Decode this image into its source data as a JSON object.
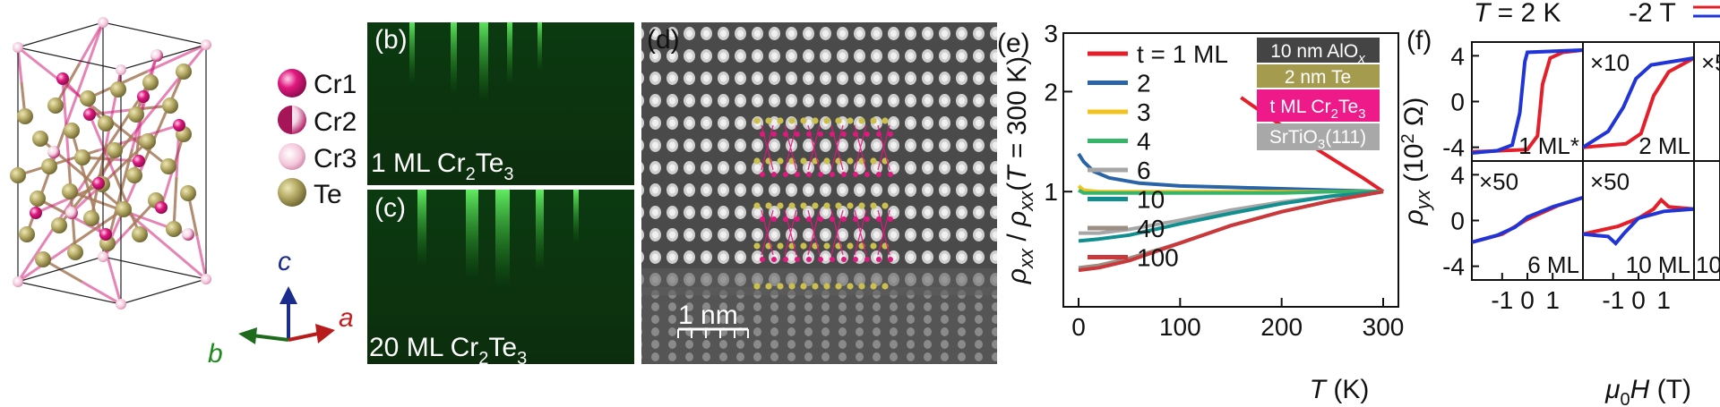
{
  "panels": {
    "b": {
      "label": "(b)",
      "caption": "1 ML Cr",
      "sub2": "2",
      "mid": "Te",
      "sub3": "3"
    },
    "c": {
      "label": "(c)",
      "caption": "20 ML Cr",
      "sub2": "2",
      "mid": "Te",
      "sub3": "3"
    },
    "d": {
      "label": "(d)",
      "scalebar": "1 nm"
    },
    "e": {
      "label": "(e)"
    },
    "f": {
      "label": "(f)",
      "title": "T = 2 K",
      "field_legend": "-2 T"
    }
  },
  "structure_legend": [
    {
      "label": "Cr1",
      "color": "#e0187f",
      "icon": "cr1-atom-icon"
    },
    {
      "label": "Cr2",
      "color": "#b01a64",
      "icon": "cr2-atom-icon"
    },
    {
      "label": "Cr3",
      "color": "#e9a5c6",
      "icon": "cr3-atom-icon"
    },
    {
      "label": "Te",
      "color": "#b3a863",
      "icon": "te-atom-icon"
    }
  ],
  "axes_labels": {
    "a": "a",
    "b": "b",
    "c": "c"
  },
  "stack_layers": [
    {
      "text": "10 nm AlO",
      "sub": "x",
      "color": "#444444"
    },
    {
      "text": "2 nm Te",
      "sub": "",
      "color": "#a59b4f"
    },
    {
      "text": "t ML Cr",
      "sub": "2",
      "mid": "Te",
      "sub2": "3",
      "color": "#ee1a8a"
    },
    {
      "text": "SrTiO",
      "sub": "3",
      "tail": "(111)",
      "color": "#a8a8a8"
    }
  ],
  "chart_data": [
    {
      "type": "line",
      "panel": "e",
      "xlabel": "T (K)",
      "ylabel": "ρxx / ρxx(T = 300 K)",
      "ylog": true,
      "xlim": [
        -15,
        315
      ],
      "ylim": [
        0.45,
        3.0
      ],
      "xticks": [
        "0",
        "100",
        "200",
        "300"
      ],
      "yticks": [
        "1",
        "2",
        "3"
      ],
      "legend_position": "top-left",
      "series": [
        {
          "name": "t = 1 ML",
          "color": "#e3202a",
          "x": [
            160,
            180,
            200,
            220,
            240,
            260,
            280,
            300
          ],
          "y": [
            1.92,
            1.74,
            1.58,
            1.44,
            1.31,
            1.2,
            1.1,
            1.0
          ]
        },
        {
          "name": "2",
          "color": "#2a64a6",
          "x": [
            0,
            5,
            15,
            30,
            60,
            100,
            150,
            200,
            250,
            300
          ],
          "y": [
            1.3,
            1.23,
            1.15,
            1.1,
            1.06,
            1.04,
            1.03,
            1.02,
            1.01,
            1.0
          ]
        },
        {
          "name": "3",
          "color": "#f2c21e",
          "x": [
            0,
            5,
            20,
            50,
            100,
            150,
            200,
            250,
            300
          ],
          "y": [
            1.04,
            1.01,
            1.0,
            1.0,
            1.0,
            1.0,
            1.0,
            1.0,
            1.0
          ]
        },
        {
          "name": "4",
          "color": "#36b56a",
          "x": [
            0,
            5,
            20,
            50,
            100,
            150,
            200,
            250,
            300
          ],
          "y": [
            1.01,
            0.99,
            0.99,
            0.99,
            0.99,
            0.99,
            0.99,
            1.0,
            1.0
          ]
        },
        {
          "name": "6",
          "color": "#a6a6a6",
          "x": [
            0,
            20,
            50,
            100,
            150,
            200,
            250,
            300
          ],
          "y": [
            0.75,
            0.75,
            0.77,
            0.82,
            0.88,
            0.93,
            0.97,
            1.0
          ]
        },
        {
          "name": "10",
          "color": "#0f8f8f",
          "x": [
            0,
            20,
            50,
            100,
            150,
            200,
            250,
            300
          ],
          "y": [
            0.71,
            0.72,
            0.74,
            0.8,
            0.86,
            0.92,
            0.97,
            1.0
          ]
        },
        {
          "name": "40",
          "color": "#9c8d82",
          "x": [
            0,
            20,
            50,
            100,
            150,
            200,
            250,
            300
          ],
          "y": [
            0.59,
            0.6,
            0.63,
            0.7,
            0.79,
            0.87,
            0.94,
            1.0
          ]
        },
        {
          "name": "100",
          "color": "#c9383a",
          "x": [
            0,
            20,
            50,
            100,
            150,
            200,
            250,
            300
          ],
          "y": [
            0.58,
            0.59,
            0.62,
            0.7,
            0.79,
            0.87,
            0.94,
            1.0
          ]
        }
      ]
    },
    {
      "type": "line",
      "panel": "f",
      "xlabel": "μ0H (T)",
      "ylabel": "ρyx (10² Ω)",
      "xlim": [
        -2.2,
        2.2
      ],
      "ylim": [
        -5.2,
        5.2
      ],
      "xticks": [
        "-1",
        "0",
        "1"
      ],
      "yticks": [
        "4",
        "0",
        "-4"
      ],
      "legend": [
        "-2 T"
      ],
      "subpanels": [
        {
          "label": "1 ML*",
          "multiplier": "",
          "up_sweep": [
            [
              -2.2,
              -4.4
            ],
            [
              0.0,
              -4.2
            ],
            [
              0.4,
              -3.0
            ],
            [
              0.6,
              1.5
            ],
            [
              0.9,
              3.8
            ],
            [
              1.4,
              4.3
            ],
            [
              2.2,
              4.5
            ]
          ],
          "down_sweep": [
            [
              2.2,
              4.5
            ],
            [
              0.0,
              4.3
            ],
            [
              -0.1,
              3.5
            ],
            [
              -0.3,
              -1.0
            ],
            [
              -0.6,
              -3.8
            ],
            [
              -1.2,
              -4.3
            ],
            [
              -2.2,
              -4.5
            ]
          ]
        },
        {
          "label": "2 ML",
          "multiplier": "×10",
          "up_sweep": [
            [
              -2.2,
              -4.0
            ],
            [
              -0.5,
              -3.7
            ],
            [
              0.1,
              -2.8
            ],
            [
              0.6,
              0.5
            ],
            [
              1.2,
              2.6
            ],
            [
              2.2,
              3.8
            ]
          ],
          "down_sweep": [
            [
              2.2,
              3.8
            ],
            [
              0.5,
              3.2
            ],
            [
              -0.1,
              2.0
            ],
            [
              -0.6,
              -0.5
            ],
            [
              -1.2,
              -2.6
            ],
            [
              -2.2,
              -4.0
            ]
          ]
        },
        {
          "label": "6 ML",
          "multiplier": "×50",
          "up_sweep": [
            [
              -2.2,
              -1.9
            ],
            [
              -1.0,
              -1.2
            ],
            [
              0.0,
              0.1
            ],
            [
              0.5,
              0.6
            ],
            [
              1.2,
              1.3
            ],
            [
              2.2,
              2.0
            ]
          ],
          "down_sweep": [
            [
              2.2,
              2.0
            ],
            [
              1.0,
              1.2
            ],
            [
              0.0,
              0.3
            ],
            [
              -0.5,
              -0.6
            ],
            [
              -1.2,
              -1.3
            ],
            [
              -2.2,
              -1.9
            ]
          ]
        },
        {
          "label": "10 ML",
          "multiplier": "×50",
          "up_sweep": [
            [
              -2.2,
              -1.2
            ],
            [
              -0.8,
              -0.5
            ],
            [
              0.0,
              0.2
            ],
            [
              0.6,
              1.0
            ],
            [
              0.9,
              1.8
            ],
            [
              1.2,
              1.2
            ],
            [
              2.2,
              1.0
            ]
          ],
          "down_sweep": [
            [
              2.2,
              1.0
            ],
            [
              1.0,
              0.8
            ],
            [
              0.0,
              0.2
            ],
            [
              -0.6,
              -1.2
            ],
            [
              -0.9,
              -2.0
            ],
            [
              -1.2,
              -1.4
            ],
            [
              -2.2,
              -1.2
            ]
          ]
        },
        {
          "label": "10",
          "multiplier": "×5",
          "up_sweep": [],
          "down_sweep": []
        }
      ]
    }
  ]
}
